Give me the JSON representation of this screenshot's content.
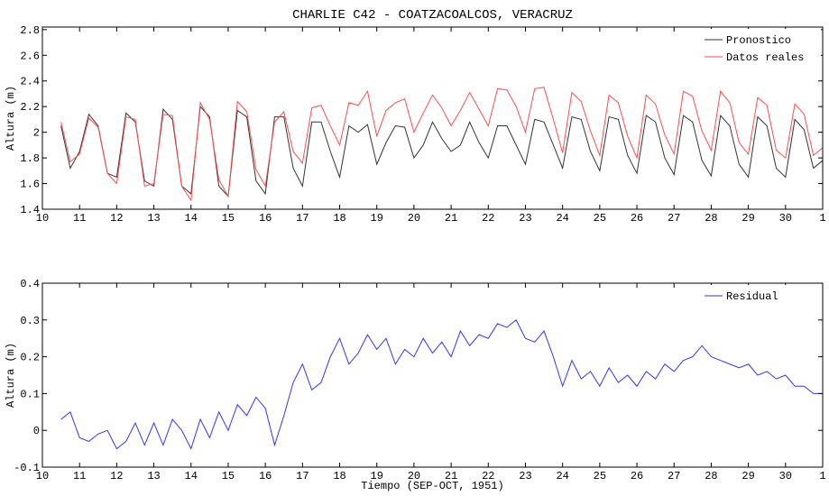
{
  "chart_data": [
    {
      "type": "line",
      "title": "CHARLIE C42 - COATZACOALCOS, VERACRUZ",
      "ylabel": "Altura (m)",
      "x": [
        10.5,
        10.75,
        11,
        11.25,
        11.5,
        11.75,
        12,
        12.25,
        12.5,
        12.75,
        13,
        13.25,
        13.5,
        13.75,
        14,
        14.25,
        14.5,
        14.75,
        15,
        15.25,
        15.5,
        15.75,
        16,
        16.25,
        16.5,
        16.75,
        17,
        17.25,
        17.5,
        17.75,
        18,
        18.25,
        18.5,
        18.75,
        19,
        19.25,
        19.5,
        19.75,
        20,
        20.25,
        20.5,
        20.75,
        21,
        21.25,
        21.5,
        21.75,
        22,
        22.25,
        22.5,
        22.75,
        23,
        23.25,
        23.5,
        23.75,
        24,
        24.25,
        24.5,
        24.75,
        25,
        25.25,
        25.5,
        25.75,
        26,
        26.25,
        26.5,
        26.75,
        27,
        27.25,
        27.5,
        27.75,
        28,
        28.25,
        28.5,
        28.75,
        29,
        29.25,
        29.5,
        29.75,
        30,
        30.25,
        30.5,
        30.75,
        31
      ],
      "series": [
        {
          "name": "Pronostico",
          "color": "#333333",
          "values": [
            2.05,
            1.72,
            1.85,
            2.14,
            2.05,
            1.68,
            1.65,
            2.15,
            2.08,
            1.62,
            1.58,
            2.18,
            2.1,
            1.58,
            1.52,
            2.2,
            2.12,
            1.58,
            1.5,
            2.17,
            2.12,
            1.62,
            1.52,
            2.12,
            2.12,
            1.72,
            1.58,
            2.08,
            2.08,
            1.85,
            1.65,
            2.05,
            2.0,
            2.06,
            1.75,
            1.92,
            2.05,
            2.04,
            1.8,
            1.9,
            2.08,
            1.95,
            1.85,
            1.9,
            2.08,
            1.92,
            1.8,
            2.05,
            2.05,
            1.9,
            1.75,
            2.1,
            2.08,
            1.9,
            1.72,
            2.12,
            2.1,
            1.85,
            1.7,
            2.12,
            2.1,
            1.82,
            1.68,
            2.13,
            2.08,
            1.8,
            1.67,
            2.13,
            2.08,
            1.78,
            1.66,
            2.13,
            2.05,
            1.75,
            1.65,
            2.12,
            2.05,
            1.72,
            1.65,
            2.1,
            2.02,
            1.72,
            1.78
          ]
        },
        {
          "name": "Datos reales",
          "color": "#ff4d4d",
          "values": [
            2.08,
            1.77,
            1.83,
            2.11,
            2.04,
            1.68,
            1.6,
            2.12,
            2.1,
            1.58,
            1.6,
            2.14,
            2.13,
            1.58,
            1.47,
            2.23,
            2.1,
            1.63,
            1.5,
            2.24,
            2.16,
            1.71,
            1.58,
            2.08,
            2.16,
            1.85,
            1.76,
            2.19,
            2.21,
            2.05,
            1.9,
            2.23,
            2.21,
            2.32,
            1.97,
            2.17,
            2.23,
            2.26,
            2.0,
            2.15,
            2.29,
            2.19,
            2.05,
            2.17,
            2.31,
            2.18,
            2.05,
            2.34,
            2.33,
            2.2,
            2.0,
            2.34,
            2.35,
            2.1,
            1.84,
            2.31,
            2.24,
            2.01,
            1.82,
            2.29,
            2.23,
            1.97,
            1.8,
            2.29,
            2.22,
            1.98,
            1.83,
            2.32,
            2.28,
            2.01,
            1.86,
            2.32,
            2.23,
            1.92,
            1.83,
            2.27,
            2.21,
            1.86,
            1.8,
            2.22,
            2.14,
            1.82,
            1.88
          ]
        }
      ],
      "xlim": [
        10,
        31
      ],
      "xticks": [
        10,
        11,
        12,
        13,
        14,
        15,
        16,
        17,
        18,
        19,
        20,
        21,
        22,
        23,
        24,
        25,
        26,
        27,
        28,
        29,
        30,
        {
          "value": 31,
          "label": "1"
        }
      ],
      "ylim": [
        1.4,
        2.82
      ],
      "yticks": [
        1.4,
        1.6,
        1.8,
        2,
        2.2,
        2.4,
        2.6,
        2.8
      ],
      "legend": "upper right"
    },
    {
      "type": "line",
      "ylabel": "Altura (m)",
      "xlabel": "Tiempo (SEP-OCT, 1951)",
      "x": [
        10.5,
        10.75,
        11,
        11.25,
        11.5,
        11.75,
        12,
        12.25,
        12.5,
        12.75,
        13,
        13.25,
        13.5,
        13.75,
        14,
        14.25,
        14.5,
        14.75,
        15,
        15.25,
        15.5,
        15.75,
        16,
        16.25,
        16.5,
        16.75,
        17,
        17.25,
        17.5,
        17.75,
        18,
        18.25,
        18.5,
        18.75,
        19,
        19.25,
        19.5,
        19.75,
        20,
        20.25,
        20.5,
        20.75,
        21,
        21.25,
        21.5,
        21.75,
        22,
        22.25,
        22.5,
        22.75,
        23,
        23.25,
        23.5,
        23.75,
        24,
        24.25,
        24.5,
        24.75,
        25,
        25.25,
        25.5,
        25.75,
        26,
        26.25,
        26.5,
        26.75,
        27,
        27.25,
        27.5,
        27.75,
        28,
        28.25,
        28.5,
        28.75,
        29,
        29.25,
        29.5,
        29.75,
        30,
        30.25,
        30.5,
        30.75,
        31
      ],
      "series": [
        {
          "name": "Residual",
          "color": "#3333ff",
          "values": [
            0.03,
            0.05,
            -0.02,
            -0.03,
            -0.01,
            0.0,
            -0.05,
            -0.03,
            0.02,
            -0.04,
            0.02,
            -0.04,
            0.03,
            0.0,
            -0.05,
            0.03,
            -0.02,
            0.05,
            0.0,
            0.07,
            0.04,
            0.09,
            0.06,
            -0.04,
            0.04,
            0.13,
            0.18,
            0.11,
            0.13,
            0.2,
            0.25,
            0.18,
            0.21,
            0.26,
            0.22,
            0.25,
            0.18,
            0.22,
            0.2,
            0.25,
            0.21,
            0.24,
            0.2,
            0.27,
            0.23,
            0.26,
            0.25,
            0.29,
            0.28,
            0.3,
            0.25,
            0.24,
            0.27,
            0.2,
            0.12,
            0.19,
            0.14,
            0.16,
            0.12,
            0.17,
            0.13,
            0.15,
            0.12,
            0.16,
            0.14,
            0.18,
            0.16,
            0.19,
            0.2,
            0.23,
            0.2,
            0.19,
            0.18,
            0.17,
            0.18,
            0.15,
            0.16,
            0.14,
            0.15,
            0.12,
            0.12,
            0.1,
            0.1
          ]
        }
      ],
      "xlim": [
        10,
        31
      ],
      "xticks": [
        10,
        11,
        12,
        13,
        14,
        15,
        16,
        17,
        18,
        19,
        20,
        21,
        22,
        23,
        24,
        25,
        26,
        27,
        28,
        29,
        30,
        {
          "value": 31,
          "label": "1"
        }
      ],
      "ylim": [
        -0.1,
        0.4
      ],
      "yticks": [
        -0.1,
        0,
        0.1,
        0.2,
        0.3,
        0.4
      ],
      "legend": "upper right"
    }
  ]
}
